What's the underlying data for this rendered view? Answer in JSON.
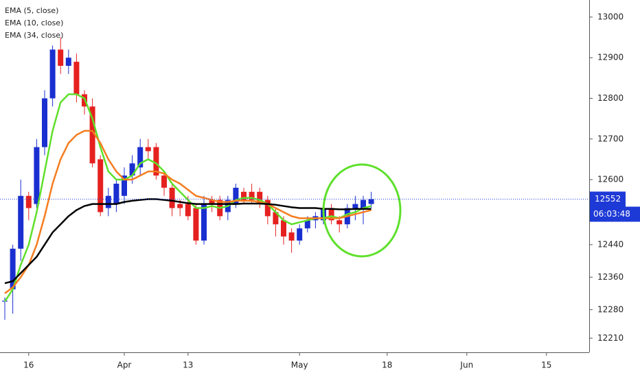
{
  "chart_data": {
    "type": "candlestick",
    "categories": [
      null,
      null,
      null,
      "16",
      null,
      null,
      null,
      null,
      null,
      null,
      null,
      null,
      null,
      null,
      null,
      "Apr",
      null,
      null,
      null,
      null,
      null,
      null,
      null,
      "13",
      null,
      null,
      null,
      null,
      null,
      null,
      null,
      null,
      null,
      null,
      null,
      null,
      null,
      "May",
      null,
      null,
      null,
      null,
      null,
      null,
      null,
      null,
      null,
      null,
      "18",
      null,
      null,
      null,
      null,
      null,
      null,
      null,
      null,
      null,
      "Jun",
      null,
      null,
      null,
      null,
      null,
      null,
      null,
      null,
      null,
      "15",
      null,
      null,
      null,
      null,
      null
    ],
    "open": [
      12300,
      12330,
      12430,
      12560,
      12540,
      12680,
      12800,
      12920,
      12880,
      12890,
      12810,
      12780,
      12650,
      12530,
      12540,
      12560,
      12610,
      12630,
      12680,
      12680,
      12610,
      12580,
      12540,
      12540,
      12530,
      12450,
      12550,
      12550,
      12520,
      12540,
      12570,
      12570,
      12570,
      12550,
      12520,
      12500,
      12470,
      12450,
      12480,
      12500,
      12500,
      12530,
      12500,
      12490,
      12530,
      12530,
      12540,
      null,
      null,
      null,
      null,
      null,
      null,
      null,
      null,
      null,
      null,
      null,
      null,
      null,
      null,
      null,
      null,
      null,
      null,
      null,
      null,
      null,
      null,
      null,
      null,
      null,
      null,
      null
    ],
    "high": [
      12310,
      12440,
      12600,
      12570,
      12700,
      12820,
      12930,
      12950,
      12920,
      12910,
      12820,
      12800,
      12660,
      12580,
      12600,
      12630,
      12660,
      12700,
      12700,
      12690,
      12620,
      12590,
      12550,
      12560,
      12540,
      12560,
      12560,
      12560,
      12560,
      12590,
      12580,
      12590,
      12580,
      12560,
      12530,
      12510,
      12480,
      12490,
      12510,
      12520,
      12540,
      12540,
      12510,
      12540,
      12560,
      12560,
      12570,
      null,
      null,
      null,
      null,
      null,
      null,
      null,
      null,
      null,
      null,
      null,
      null,
      null,
      null,
      null,
      null,
      null,
      null,
      null,
      null,
      null,
      null,
      null,
      null,
      null,
      null,
      null
    ],
    "low": [
      12255,
      12270,
      12400,
      12500,
      12530,
      12660,
      12780,
      12860,
      12860,
      12790,
      12760,
      12630,
      12510,
      12510,
      12520,
      12540,
      12590,
      12610,
      12650,
      12600,
      12560,
      12510,
      12510,
      12500,
      12440,
      12440,
      12520,
      12500,
      12500,
      12530,
      12540,
      12540,
      12530,
      12490,
      12460,
      12440,
      12420,
      12440,
      12470,
      12480,
      12490,
      12490,
      12470,
      12480,
      12500,
      12490,
      12530,
      null,
      null,
      null,
      null,
      null,
      null,
      null,
      null,
      null,
      null,
      null,
      null,
      null,
      null,
      null,
      null,
      null,
      null,
      null,
      null,
      null,
      null,
      null,
      null,
      null,
      null,
      null
    ],
    "close": [
      12302,
      12430,
      12560,
      12530,
      12680,
      12800,
      12920,
      12880,
      12900,
      12810,
      12780,
      12640,
      12520,
      12560,
      12590,
      12610,
      12640,
      12680,
      12670,
      12610,
      12580,
      12530,
      12530,
      12510,
      12450,
      12540,
      12540,
      12510,
      12550,
      12580,
      12550,
      12550,
      12540,
      12510,
      12490,
      12460,
      12450,
      12480,
      12500,
      12510,
      12530,
      12500,
      12490,
      12530,
      12540,
      12550,
      12552,
      null,
      null,
      null,
      null,
      null,
      null,
      null,
      null,
      null,
      null,
      null,
      null,
      null,
      null,
      null,
      null,
      null,
      null,
      null,
      null,
      null,
      null,
      null,
      null,
      null,
      null,
      null
    ],
    "up_color": "#1a2fd0",
    "down_color": "#e5211f",
    "series": [
      {
        "name": "EMA (5, close)",
        "color": "#5ee02a",
        "values": [
          12300,
          12330,
          12390,
          12440,
          12520,
          12620,
          12720,
          12790,
          12810,
          12810,
          12800,
          12750,
          12680,
          12620,
          12600,
          12600,
          12610,
          12640,
          12650,
          12640,
          12620,
          12590,
          12570,
          12550,
          12530,
          12530,
          12535,
          12530,
          12535,
          12550,
          12555,
          12555,
          12550,
          12540,
          12520,
          12500,
          12490,
          12495,
          12500,
          12505,
          12505,
          12510,
          12505,
          12515,
          12520,
          12530,
          12535,
          null,
          null,
          null,
          null,
          null,
          null,
          null,
          null,
          null,
          null,
          null,
          null,
          null,
          null,
          null,
          null,
          null,
          null,
          null,
          null,
          null,
          null,
          null,
          null,
          null,
          null,
          null
        ]
      },
      {
        "name": "EMA (10, close)",
        "color": "#f57c1f",
        "values": [
          12320,
          12335,
          12360,
          12390,
          12440,
          12510,
          12590,
          12650,
          12690,
          12710,
          12720,
          12720,
          12690,
          12650,
          12620,
          12600,
          12600,
          12610,
          12620,
          12620,
          12615,
          12600,
          12590,
          12575,
          12560,
          12555,
          12550,
          12545,
          12545,
          12548,
          12548,
          12548,
          12545,
          12540,
          12530,
          12520,
          12510,
          12505,
          12505,
          12505,
          12505,
          12505,
          12505,
          12510,
          12515,
          12520,
          12525,
          null,
          null,
          null,
          null,
          null,
          null,
          null,
          null,
          null,
          null,
          null,
          null,
          null,
          null,
          null,
          null,
          null,
          null,
          null,
          null,
          null,
          null,
          null,
          null,
          null,
          null,
          null
        ]
      },
      {
        "name": "EMA (34, close)",
        "color": "#000000",
        "values": [
          12345,
          12350,
          12370,
          12390,
          12410,
          12440,
          12470,
          12490,
          12510,
          12525,
          12535,
          12540,
          12540,
          12540,
          12540,
          12545,
          12548,
          12550,
          12552,
          12552,
          12550,
          12548,
          12545,
          12542,
          12540,
          12540,
          12540,
          12540,
          12540,
          12540,
          12541,
          12541,
          12541,
          12540,
          12538,
          12535,
          12532,
          12530,
          12530,
          12530,
          12528,
          12528,
          12527,
          12527,
          12528,
          12528,
          12528,
          null,
          null,
          null,
          null,
          null,
          null,
          null,
          null,
          null,
          null,
          null,
          null,
          null,
          null,
          null,
          null,
          null,
          null,
          null,
          null,
          null,
          null,
          null,
          null,
          null,
          null,
          null
        ]
      }
    ],
    "ylim": [
      12175,
      13042
    ],
    "yticks": [
      13000,
      12900,
      12800,
      12700,
      12600,
      12440,
      12360,
      12280,
      12210
    ],
    "last_price": 12552,
    "last_price_color": "#1e3ad6",
    "countdown": "06:03:48"
  }
}
